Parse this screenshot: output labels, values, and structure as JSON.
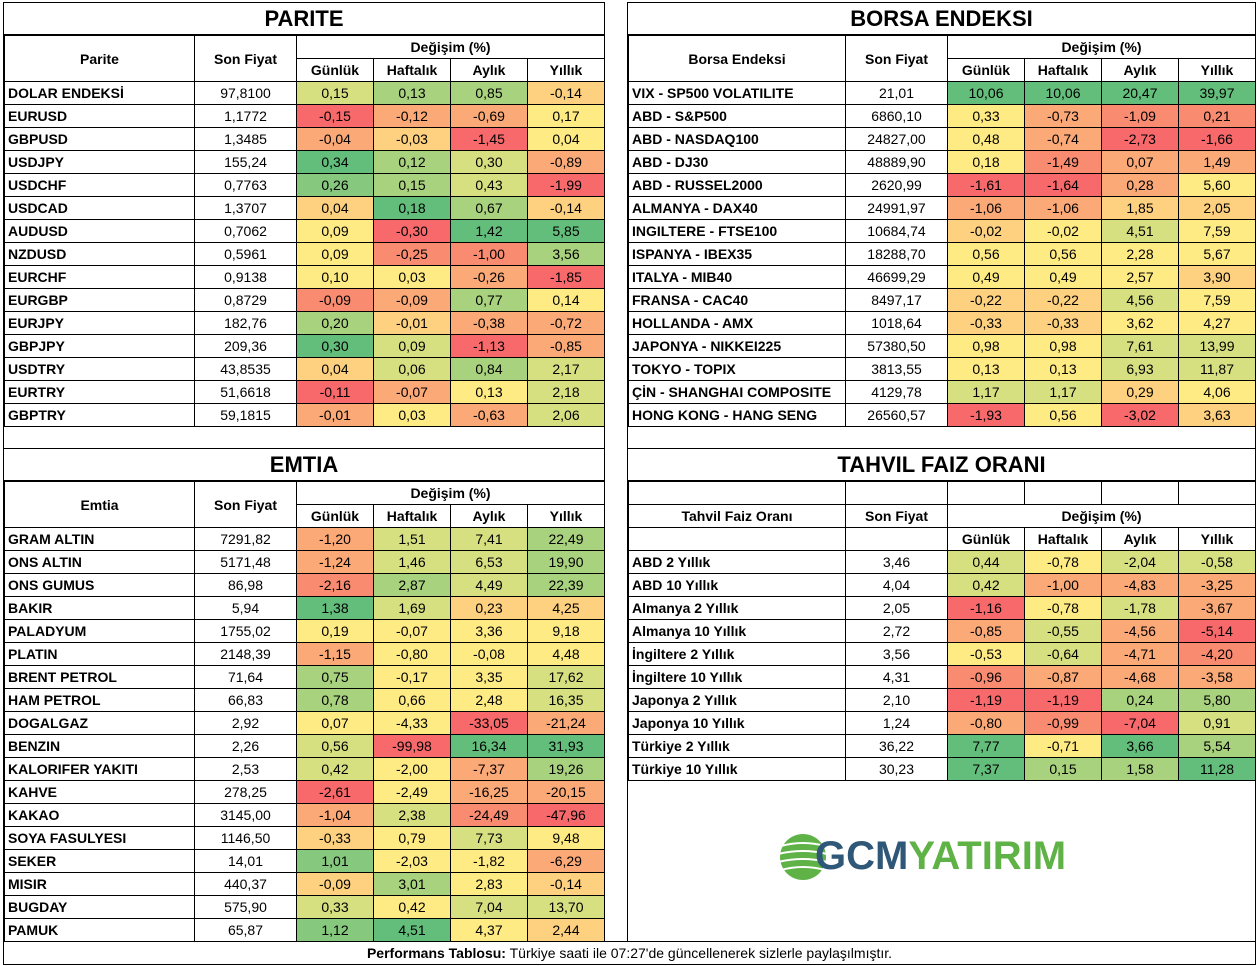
{
  "palette": {
    "G3": "#63be7b",
    "G2": "#86c87d",
    "G1": "#a9d27f",
    "YG": "#d6e081",
    "Y": "#ffeb84",
    "LO": "#fdd17f",
    "O": "#fba977",
    "OR": "#f98b71",
    "R": "#f8696b"
  },
  "headers": {
    "son_fiyat": "Son Fiyat",
    "degisim": "Değişim (%)",
    "gunluk": "Günlük",
    "haftalik": "Haftalık",
    "aylik": "Aylık",
    "yillik": "Yıllık"
  },
  "parite": {
    "title": "PARITE",
    "col_name": "Parite",
    "rows": [
      {
        "name": "DOLAR ENDEKSİ",
        "price": "97,8100",
        "v": [
          "0,15",
          "0,13",
          "0,85",
          "-0,14"
        ],
        "c": [
          "YG",
          "G1",
          "G1",
          "LO"
        ]
      },
      {
        "name": "EURUSD",
        "price": "1,1772",
        "v": [
          "-0,15",
          "-0,12",
          "-0,69",
          "0,17"
        ],
        "c": [
          "R",
          "O",
          "O",
          "Y"
        ]
      },
      {
        "name": "GBPUSD",
        "price": "1,3485",
        "v": [
          "-0,04",
          "-0,03",
          "-1,45",
          "0,04"
        ],
        "c": [
          "O",
          "LO",
          "R",
          "Y"
        ]
      },
      {
        "name": "USDJPY",
        "price": "155,24",
        "v": [
          "0,34",
          "0,12",
          "0,30",
          "-0,89"
        ],
        "c": [
          "G3",
          "G1",
          "YG",
          "O"
        ]
      },
      {
        "name": "USDCHF",
        "price": "0,7763",
        "v": [
          "0,26",
          "0,15",
          "0,43",
          "-1,99"
        ],
        "c": [
          "G2",
          "G1",
          "YG",
          "R"
        ]
      },
      {
        "name": "USDCAD",
        "price": "1,3707",
        "v": [
          "0,04",
          "0,18",
          "0,67",
          "-0,14"
        ],
        "c": [
          "LO",
          "G3",
          "G1",
          "LO"
        ]
      },
      {
        "name": "AUDUSD",
        "price": "0,7062",
        "v": [
          "0,09",
          "-0,30",
          "1,42",
          "5,85"
        ],
        "c": [
          "Y",
          "R",
          "G3",
          "G3"
        ]
      },
      {
        "name": "NZDUSD",
        "price": "0,5961",
        "v": [
          "0,09",
          "-0,25",
          "-1,00",
          "3,56"
        ],
        "c": [
          "Y",
          "OR",
          "OR",
          "G1"
        ]
      },
      {
        "name": "EURCHF",
        "price": "0,9138",
        "v": [
          "0,10",
          "0,03",
          "-0,26",
          "-1,85"
        ],
        "c": [
          "Y",
          "Y",
          "O",
          "R"
        ]
      },
      {
        "name": "EURGBP",
        "price": "0,8729",
        "v": [
          "-0,09",
          "-0,09",
          "0,77",
          "0,14"
        ],
        "c": [
          "OR",
          "O",
          "G1",
          "Y"
        ]
      },
      {
        "name": "EURJPY",
        "price": "182,76",
        "v": [
          "0,20",
          "-0,01",
          "-0,38",
          "-0,72"
        ],
        "c": [
          "G1",
          "LO",
          "O",
          "O"
        ]
      },
      {
        "name": "GBPJPY",
        "price": "209,36",
        "v": [
          "0,30",
          "0,09",
          "-1,13",
          "-0,85"
        ],
        "c": [
          "G3",
          "YG",
          "R",
          "O"
        ]
      },
      {
        "name": "USDTRY",
        "price": "43,8535",
        "v": [
          "0,04",
          "0,06",
          "0,84",
          "2,17"
        ],
        "c": [
          "LO",
          "YG",
          "G1",
          "YG"
        ]
      },
      {
        "name": "EURTRY",
        "price": "51,6618",
        "v": [
          "-0,11",
          "-0,07",
          "0,13",
          "2,18"
        ],
        "c": [
          "R",
          "O",
          "Y",
          "YG"
        ]
      },
      {
        "name": "GBPTRY",
        "price": "59,1815",
        "v": [
          "-0,01",
          "0,03",
          "-0,63",
          "2,06"
        ],
        "c": [
          "O",
          "Y",
          "O",
          "YG"
        ]
      }
    ]
  },
  "borsa": {
    "title": "BORSA ENDEKSI",
    "col_name": "Borsa Endeksi",
    "rows": [
      {
        "name": "VIX  - SP500 VOLATILITE",
        "price": "21,01",
        "v": [
          "10,06",
          "10,06",
          "20,47",
          "39,97"
        ],
        "c": [
          "G3",
          "G3",
          "G3",
          "G3"
        ]
      },
      {
        "name": "ABD - S&P500",
        "price": "6860,10",
        "v": [
          "0,33",
          "-0,73",
          "-1,09",
          "0,21"
        ],
        "c": [
          "Y",
          "O",
          "OR",
          "OR"
        ]
      },
      {
        "name": "ABD - NASDAQ100",
        "price": "24827,00",
        "v": [
          "0,48",
          "-0,74",
          "-2,73",
          "-1,66"
        ],
        "c": [
          "Y",
          "O",
          "R",
          "R"
        ]
      },
      {
        "name": "ABD - DJ30",
        "price": "48889,90",
        "v": [
          "0,18",
          "-1,49",
          "0,07",
          "1,49"
        ],
        "c": [
          "Y",
          "OR",
          "O",
          "O"
        ]
      },
      {
        "name": "ABD - RUSSEL2000",
        "price": "2620,99",
        "v": [
          "-1,61",
          "-1,64",
          "0,28",
          "5,60"
        ],
        "c": [
          "R",
          "R",
          "O",
          "Y"
        ]
      },
      {
        "name": "ALMANYA - DAX40",
        "price": "24991,97",
        "v": [
          "-1,06",
          "-1,06",
          "1,85",
          "2,05"
        ],
        "c": [
          "O",
          "O",
          "LO",
          "LO"
        ]
      },
      {
        "name": "INGILTERE - FTSE100",
        "price": "10684,74",
        "v": [
          "-0,02",
          "-0,02",
          "4,51",
          "7,59"
        ],
        "c": [
          "LO",
          "Y",
          "YG",
          "Y"
        ]
      },
      {
        "name": "ISPANYA - IBEX35",
        "price": "18288,70",
        "v": [
          "0,56",
          "0,56",
          "2,28",
          "5,67"
        ],
        "c": [
          "Y",
          "Y",
          "Y",
          "Y"
        ]
      },
      {
        "name": "ITALYA - MIB40",
        "price": "46699,29",
        "v": [
          "0,49",
          "0,49",
          "2,57",
          "3,90"
        ],
        "c": [
          "Y",
          "Y",
          "Y",
          "LO"
        ]
      },
      {
        "name": "FRANSA - CAC40",
        "price": "8497,17",
        "v": [
          "-0,22",
          "-0,22",
          "4,56",
          "7,59"
        ],
        "c": [
          "LO",
          "LO",
          "YG",
          "Y"
        ]
      },
      {
        "name": "HOLLANDA - AMX",
        "price": "1018,64",
        "v": [
          "-0,33",
          "-0,33",
          "3,62",
          "4,27"
        ],
        "c": [
          "LO",
          "LO",
          "Y",
          "Y"
        ]
      },
      {
        "name": "JAPONYA - NIKKEI225",
        "price": "57380,50",
        "v": [
          "0,98",
          "0,98",
          "7,61",
          "13,99"
        ],
        "c": [
          "Y",
          "Y",
          "YG",
          "YG"
        ]
      },
      {
        "name": "TOKYO - TOPIX",
        "price": "3813,55",
        "v": [
          "0,13",
          "0,13",
          "6,93",
          "11,87"
        ],
        "c": [
          "Y",
          "Y",
          "YG",
          "YG"
        ]
      },
      {
        "name": "ÇİN - SHANGHAI COMPOSITE",
        "price": "4129,78",
        "v": [
          "1,17",
          "1,17",
          "0,29",
          "4,06"
        ],
        "c": [
          "YG",
          "YG",
          "LO",
          "Y"
        ]
      },
      {
        "name": "HONG KONG - HANG SENG",
        "price": "26560,57",
        "v": [
          "-1,93",
          "0,56",
          "-3,02",
          "3,63"
        ],
        "c": [
          "R",
          "Y",
          "R",
          "LO"
        ]
      }
    ]
  },
  "emtia": {
    "title": "EMTIA",
    "col_name": "Emtia",
    "rows": [
      {
        "name": "GRAM ALTIN",
        "price": "7291,82",
        "v": [
          "-1,20",
          "1,51",
          "7,41",
          "22,49"
        ],
        "c": [
          "O",
          "YG",
          "YG",
          "G1"
        ]
      },
      {
        "name": "ONS ALTIN",
        "price": "5171,48",
        "v": [
          "-1,24",
          "1,46",
          "6,53",
          "19,90"
        ],
        "c": [
          "O",
          "YG",
          "YG",
          "G1"
        ]
      },
      {
        "name": "ONS GUMUS",
        "price": "86,98",
        "v": [
          "-2,16",
          "2,87",
          "4,49",
          "22,39"
        ],
        "c": [
          "OR",
          "G1",
          "YG",
          "G1"
        ]
      },
      {
        "name": "BAKIR",
        "price": "5,94",
        "v": [
          "1,38",
          "1,69",
          "0,23",
          "4,25"
        ],
        "c": [
          "G3",
          "YG",
          "LO",
          "LO"
        ]
      },
      {
        "name": "PALADYUM",
        "price": "1755,02",
        "v": [
          "0,19",
          "-0,07",
          "3,36",
          "9,18"
        ],
        "c": [
          "Y",
          "Y",
          "Y",
          "Y"
        ]
      },
      {
        "name": "PLATIN",
        "price": "2148,39",
        "v": [
          "-1,15",
          "-0,80",
          "-0,08",
          "4,48"
        ],
        "c": [
          "O",
          "Y",
          "Y",
          "Y"
        ]
      },
      {
        "name": "BRENT PETROL",
        "price": "71,64",
        "v": [
          "0,75",
          "-0,17",
          "3,35",
          "17,62"
        ],
        "c": [
          "G1",
          "Y",
          "Y",
          "YG"
        ]
      },
      {
        "name": "HAM PETROL",
        "price": "66,83",
        "v": [
          "0,78",
          "0,66",
          "2,48",
          "16,35"
        ],
        "c": [
          "G1",
          "Y",
          "Y",
          "YG"
        ]
      },
      {
        "name": "DOGALGAZ",
        "price": "2,92",
        "v": [
          "0,07",
          "-4,33",
          "-33,05",
          "-21,24"
        ],
        "c": [
          "Y",
          "Y",
          "R",
          "O"
        ]
      },
      {
        "name": "BENZIN",
        "price": "2,26",
        "v": [
          "0,56",
          "-99,98",
          "16,34",
          "31,93"
        ],
        "c": [
          "YG",
          "R",
          "G3",
          "G3"
        ]
      },
      {
        "name": "KALORIFER YAKITI",
        "price": "2,53",
        "v": [
          "0,42",
          "-2,00",
          "-7,37",
          "19,26"
        ],
        "c": [
          "YG",
          "Y",
          "O",
          "G1"
        ]
      },
      {
        "name": "KAHVE",
        "price": "278,25",
        "v": [
          "-2,61",
          "-2,49",
          "-16,25",
          "-20,15"
        ],
        "c": [
          "R",
          "Y",
          "O",
          "O"
        ]
      },
      {
        "name": "KAKAO",
        "price": "3145,00",
        "v": [
          "-1,04",
          "2,38",
          "-24,49",
          "-47,96"
        ],
        "c": [
          "O",
          "YG",
          "OR",
          "R"
        ]
      },
      {
        "name": "SOYA FASULYESI",
        "price": "1146,50",
        "v": [
          "-0,33",
          "0,79",
          "7,73",
          "9,48"
        ],
        "c": [
          "LO",
          "Y",
          "YG",
          "Y"
        ]
      },
      {
        "name": "SEKER",
        "price": "14,01",
        "v": [
          "1,01",
          "-2,03",
          "-1,82",
          "-6,29"
        ],
        "c": [
          "G2",
          "Y",
          "Y",
          "O"
        ]
      },
      {
        "name": "MISIR",
        "price": "440,37",
        "v": [
          "-0,09",
          "3,01",
          "2,83",
          "-0,14"
        ],
        "c": [
          "LO",
          "G1",
          "Y",
          "LO"
        ]
      },
      {
        "name": "BUGDAY",
        "price": "575,90",
        "v": [
          "0,33",
          "0,42",
          "7,04",
          "13,70"
        ],
        "c": [
          "YG",
          "Y",
          "YG",
          "YG"
        ]
      },
      {
        "name": "PAMUK",
        "price": "65,87",
        "v": [
          "1,12",
          "4,51",
          "4,37",
          "2,44"
        ],
        "c": [
          "G2",
          "G3",
          "Y",
          "LO"
        ]
      }
    ]
  },
  "tahvil": {
    "title": "TAHVIL FAIZ ORANI",
    "col_name": "Tahvil Faiz Oranı",
    "rows": [
      {
        "name": "ABD 2 Yıllık",
        "price": "3,46",
        "v": [
          "0,44",
          "-0,78",
          "-2,04",
          "-0,58"
        ],
        "c": [
          "YG",
          "Y",
          "YG",
          "YG"
        ]
      },
      {
        "name": "ABD 10 Yıllık",
        "price": "4,04",
        "v": [
          "0,42",
          "-1,00",
          "-4,83",
          "-3,25"
        ],
        "c": [
          "YG",
          "O",
          "O",
          "O"
        ]
      },
      {
        "name": "Almanya 2 Yıllık",
        "price": "2,05",
        "v": [
          "-1,16",
          "-0,78",
          "-1,78",
          "-3,67"
        ],
        "c": [
          "R",
          "Y",
          "YG",
          "O"
        ]
      },
      {
        "name": "Almanya 10 Yıllık",
        "price": "2,72",
        "v": [
          "-0,85",
          "-0,55",
          "-4,56",
          "-5,14"
        ],
        "c": [
          "O",
          "YG",
          "O",
          "R"
        ]
      },
      {
        "name": "İngiltere 2 Yıllık",
        "price": "3,56",
        "v": [
          "-0,53",
          "-0,64",
          "-4,71",
          "-4,20"
        ],
        "c": [
          "Y",
          "YG",
          "O",
          "OR"
        ]
      },
      {
        "name": "İngiltere 10 Yıllık",
        "price": "4,31",
        "v": [
          "-0,96",
          "-0,87",
          "-4,68",
          "-3,58"
        ],
        "c": [
          "OR",
          "O",
          "O",
          "O"
        ]
      },
      {
        "name": "Japonya 2 Yıllık",
        "price": "2,10",
        "v": [
          "-1,19",
          "-1,19",
          "0,24",
          "5,80"
        ],
        "c": [
          "R",
          "R",
          "G1",
          "G1"
        ]
      },
      {
        "name": "Japonya 10 Yıllık",
        "price": "1,24",
        "v": [
          "-0,80",
          "-0,99",
          "-7,04",
          "0,91"
        ],
        "c": [
          "O",
          "OR",
          "R",
          "YG"
        ]
      },
      {
        "name": "Türkiye 2 Yıllık",
        "price": "36,22",
        "v": [
          "7,77",
          "-0,71",
          "3,66",
          "5,54"
        ],
        "c": [
          "G3",
          "Y",
          "G3",
          "G1"
        ]
      },
      {
        "name": "Türkiye 10 Yıllık",
        "price": "30,23",
        "v": [
          "7,37",
          "0,15",
          "1,58",
          "11,28"
        ],
        "c": [
          "G3",
          "G1",
          "G1",
          "G3"
        ]
      }
    ]
  },
  "logo": {
    "part1": "GCM",
    "part2": "YATIRIM"
  },
  "footer": {
    "label": "Performans Tablosu:",
    "text": " Türkiye saati ile 07:27'de güncellenerek sizlerle paylaşılmıştır."
  }
}
